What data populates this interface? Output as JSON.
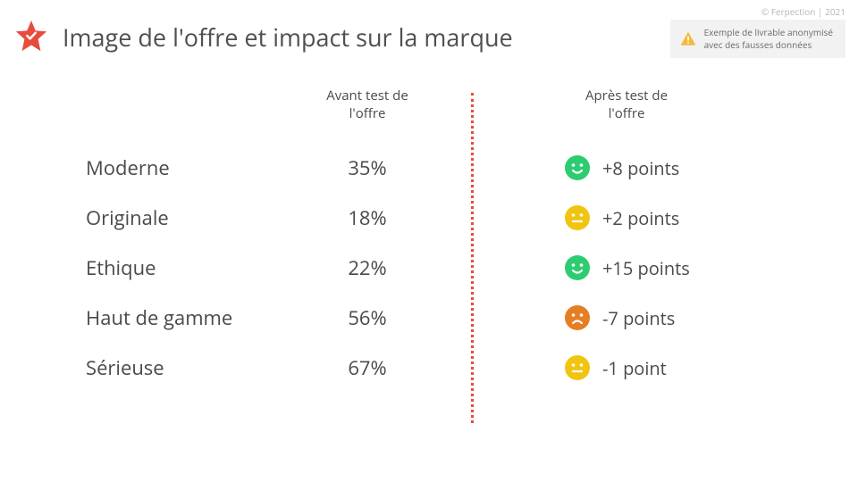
{
  "meta": {
    "copyright": "© Ferpection | 2021",
    "disclaimer": "Exemple de livrable anonymisé\navec des fausses données"
  },
  "title": "Image de l'offre et impact sur la marque",
  "columns": {
    "before": "Avant test de\nl'offre",
    "after": "Après test de\nl'offre"
  },
  "colors": {
    "accent": "#e84b3c",
    "warning": "#f6b93b",
    "face_positive": "#2ecc71",
    "face_neutral": "#f1c40f",
    "face_negative": "#e67e22",
    "text": "#4a4a4a",
    "bg": "#ffffff",
    "disclaimer_bg": "#f2f2f2"
  },
  "rows": [
    {
      "label": "Moderne",
      "before": "35%",
      "after_points": "+8 points",
      "sentiment": "positive"
    },
    {
      "label": "Originale",
      "before": "18%",
      "after_points": "+2 points",
      "sentiment": "neutral"
    },
    {
      "label": "Ethique",
      "before": "22%",
      "after_points": "+15 points",
      "sentiment": "positive"
    },
    {
      "label": "Haut de gamme",
      "before": "56%",
      "after_points": "-7 points",
      "sentiment": "negative"
    },
    {
      "label": "Sérieuse",
      "before": "67%",
      "after_points": "-1 point",
      "sentiment": "neutral"
    }
  ]
}
